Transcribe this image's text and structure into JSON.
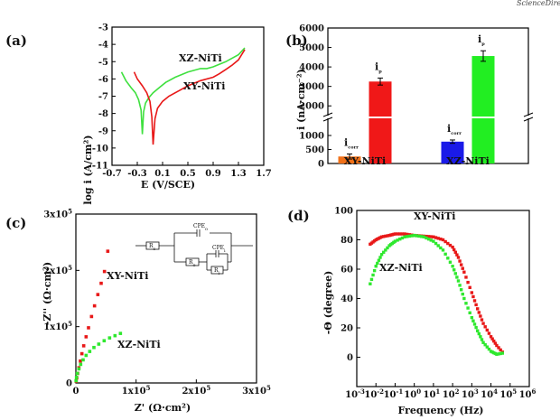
{
  "corner_text": "ScienceDirect",
  "chart_data": [
    {
      "panel": "(a)",
      "type": "line",
      "xlabel": "E (V/SCE)",
      "ylabel": "log i (A/cm²)",
      "xlim": [
        -0.7,
        1.7
      ],
      "ylim": [
        -11,
        -3
      ],
      "xticks": [
        -0.7,
        -0.3,
        0.1,
        0.5,
        0.9,
        1.3,
        1.7
      ],
      "yticks": [
        -11,
        -10,
        -9,
        -8,
        -7,
        -6,
        -5,
        -4,
        -3
      ],
      "xtick_labels": [
        "-0.7",
        "-0.3",
        "0.1",
        "0.5",
        "0.9",
        "1.3",
        "1.7"
      ],
      "ytick_labels": [
        "-11",
        "-10",
        "-9",
        "-8",
        "-7",
        "-6",
        "-5",
        "-4",
        "-3"
      ],
      "series": [
        {
          "name": "XZ-NiTi",
          "color": "#3fe03f",
          "x": [
            -0.55,
            -0.48,
            -0.4,
            -0.33,
            -0.28,
            -0.24,
            -0.22,
            -0.2,
            -0.17,
            -0.12,
            -0.05,
            0.05,
            0.15,
            0.3,
            0.5,
            0.7,
            0.8,
            0.9,
            1.0,
            1.1,
            1.2,
            1.3,
            1.35,
            1.4
          ],
          "y": [
            -5.6,
            -6.1,
            -6.5,
            -6.8,
            -7.2,
            -7.8,
            -9.2,
            -7.9,
            -7.4,
            -7.1,
            -6.8,
            -6.5,
            -6.2,
            -5.9,
            -5.6,
            -5.4,
            -5.4,
            -5.3,
            -5.15,
            -5.0,
            -4.8,
            -4.6,
            -4.4,
            -4.2
          ]
        },
        {
          "name": "XY-NiTi",
          "color": "#e81818",
          "x": [
            -0.35,
            -0.3,
            -0.22,
            -0.15,
            -0.1,
            -0.07,
            -0.05,
            -0.02,
            0.02,
            0.1,
            0.2,
            0.35,
            0.5,
            0.7,
            0.9,
            1.0,
            1.1,
            1.2,
            1.3,
            1.35,
            1.4
          ],
          "y": [
            -5.6,
            -6.0,
            -6.4,
            -6.8,
            -7.3,
            -8.2,
            -9.8,
            -8.3,
            -7.7,
            -7.3,
            -7.0,
            -6.7,
            -6.4,
            -6.1,
            -5.9,
            -5.7,
            -5.45,
            -5.2,
            -4.9,
            -4.6,
            -4.3
          ]
        }
      ],
      "annotations": [
        "XZ-NiTi",
        "XY-NiTi"
      ]
    },
    {
      "panel": "(b)",
      "type": "bar",
      "ylabel": "i (nA·cm⁻²)",
      "categories": [
        "XY-NiTi",
        "XZ-NiTi"
      ],
      "yticks_lower": [
        0,
        500,
        1000
      ],
      "yticks_upper": [
        2000,
        3000,
        4000,
        5000,
        6000
      ],
      "ytick_labels": [
        "0",
        "500",
        "1000",
        "2000",
        "3000",
        "4000",
        "5000",
        "6000"
      ],
      "series": [
        {
          "name": "i_corr",
          "values": [
            250,
            780
          ],
          "errors": [
            90,
            60
          ],
          "colors": [
            "#f07018",
            "#1a1ae8"
          ],
          "label": "i",
          "sub": "corr"
        },
        {
          "name": "i_p",
          "values": [
            3250,
            4560
          ],
          "errors": [
            180,
            270
          ],
          "colors": [
            "#f01818",
            "#22ee22"
          ],
          "label": "i",
          "sub": "p"
        }
      ]
    },
    {
      "panel": "(c)",
      "type": "scatter",
      "xlabel": "Z' (Ω·cm²)",
      "ylabel": "-Z'' (Ω·cm²)",
      "xlim": [
        0,
        300000
      ],
      "ylim": [
        0,
        300000
      ],
      "xtick_labels": [
        "0",
        "1x10",
        "2x10",
        "3x10"
      ],
      "ytick_labels": [
        "0",
        "1x10",
        "2x10",
        "3x10"
      ],
      "exponent": "5",
      "series": [
        {
          "name": "XY-NiTi",
          "color": "#e81818",
          "x": [
            500,
            1500,
            3000,
            5000,
            7500,
            10000,
            13000,
            17000,
            21000,
            26000,
            31000,
            36500,
            42000,
            47500,
            53000
          ],
          "y": [
            3000,
            9000,
            17000,
            27000,
            39000,
            52000,
            66000,
            82000,
            98000,
            118000,
            137000,
            157000,
            177000,
            198000,
            234000
          ]
        },
        {
          "name": "XZ-NiTi",
          "color": "#2ee82e",
          "x": [
            300,
            1000,
            2500,
            5000,
            8000,
            12000,
            17000,
            23000,
            30000,
            38000,
            47000,
            56000,
            65000,
            74000
          ],
          "y": [
            4000,
            10000,
            17000,
            25000,
            33000,
            41000,
            49000,
            56000,
            63000,
            69000,
            75000,
            80000,
            84000,
            88000
          ]
        }
      ],
      "annotations": [
        "XY-NiTi",
        "XZ-NiTi"
      ],
      "circuit_labels": {
        "cpe_o": "CPE",
        "cpe_o_sub": "o",
        "cpe_i": "CPE",
        "cpe_i_sub": "i",
        "rs": "R",
        "rs_sub": "s",
        "ro": "R",
        "ro_sub": "o",
        "ri": "R",
        "ri_sub": "i"
      }
    },
    {
      "panel": "(d)",
      "type": "scatter",
      "xlabel": "Frequency (Hz)",
      "ylabel": "-Θ (degree)",
      "xscale": "log",
      "xlim_log10": [
        -3,
        6
      ],
      "ylim": [
        -20,
        100
      ],
      "yticks": [
        0,
        20,
        40,
        60,
        80,
        100
      ],
      "xtick_base": "10",
      "xtick_exponents": [
        "-3",
        "-2",
        "-1",
        "0",
        "1",
        "2",
        "3",
        "4",
        "5",
        "6"
      ],
      "series": [
        {
          "name": "XY-NiTi",
          "color": "#e81818",
          "logf": [
            -2.3,
            -2.0,
            -1.7,
            -1.3,
            -1.0,
            -0.5,
            0.0,
            0.5,
            1.0,
            1.5,
            2.0,
            2.3,
            2.6,
            3.0,
            3.3,
            3.6,
            4.0,
            4.3,
            4.7
          ],
          "y": [
            77,
            80,
            82,
            83,
            84,
            84,
            83,
            82.5,
            82,
            80,
            75,
            68,
            58,
            44,
            33,
            23,
            14,
            8,
            2
          ]
        },
        {
          "name": "XZ-NiTi",
          "color": "#2ee82e",
          "logf": [
            -2.3,
            -2.0,
            -1.7,
            -1.3,
            -1.0,
            -0.5,
            0.0,
            0.5,
            1.0,
            1.5,
            2.0,
            2.3,
            2.6,
            3.0,
            3.3,
            3.6,
            4.0,
            4.3,
            4.7
          ],
          "y": [
            50,
            62,
            70,
            76,
            79,
            82,
            83,
            82,
            79,
            73,
            62,
            52,
            40,
            27,
            18,
            10,
            4,
            2,
            3
          ]
        }
      ],
      "annotations": [
        "XY-NiTi",
        "XZ-NiTi"
      ]
    }
  ]
}
